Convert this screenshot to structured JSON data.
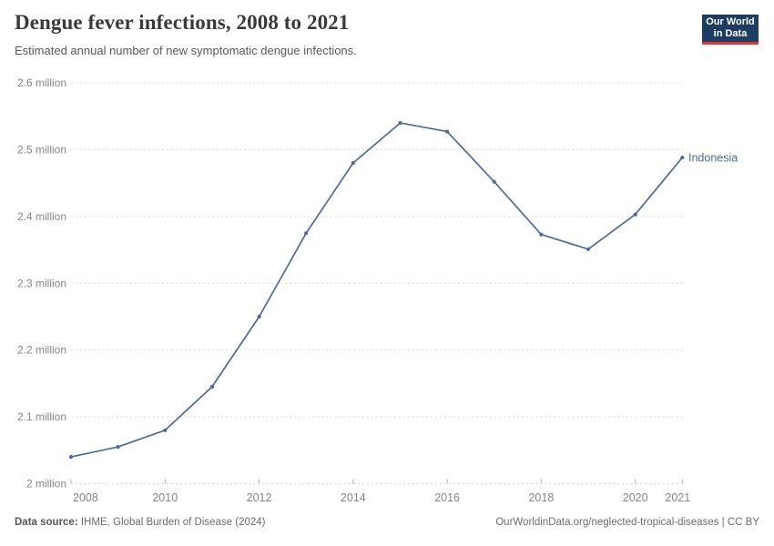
{
  "header": {
    "title": "Dengue fever infections, 2008 to 2021",
    "subtitle": "Estimated annual number of new symptomatic dengue infections.",
    "logo": {
      "line1": "Our World",
      "line2": "in Data"
    }
  },
  "chart_data": {
    "type": "line",
    "title": "Dengue fever infections, 2008 to 2021",
    "unit": "million",
    "x": [
      2008,
      2009,
      2010,
      2011,
      2012,
      2013,
      2014,
      2015,
      2016,
      2017,
      2018,
      2019,
      2020,
      2021
    ],
    "series": [
      {
        "name": "Indonesia",
        "values_millions": [
          2.04,
          2.055,
          2.08,
          2.145,
          2.25,
          2.375,
          2.48,
          2.54,
          2.527,
          2.452,
          2.373,
          2.351,
          2.403,
          2.488
        ]
      }
    ],
    "xlim": [
      2008,
      2021
    ],
    "ylim": [
      2.0,
      2.6
    ],
    "grid": true,
    "legend_position": "end-of-line",
    "yticks": [
      {
        "value": 2.0,
        "label": "2 million"
      },
      {
        "value": 2.1,
        "label": "2.1 million"
      },
      {
        "value": 2.2,
        "label": "2.2 million"
      },
      {
        "value": 2.3,
        "label": "2.3 million"
      },
      {
        "value": 2.4,
        "label": "2.4 million"
      },
      {
        "value": 2.5,
        "label": "2.5 million"
      },
      {
        "value": 2.6,
        "label": "2.6 million"
      }
    ],
    "xticks": [
      {
        "value": 2008,
        "label": "2008"
      },
      {
        "value": 2010,
        "label": "2010"
      },
      {
        "value": 2012,
        "label": "2012"
      },
      {
        "value": 2014,
        "label": "2014"
      },
      {
        "value": 2016,
        "label": "2016"
      },
      {
        "value": 2018,
        "label": "2018"
      },
      {
        "value": 2020,
        "label": "2020"
      },
      {
        "value": 2021,
        "label": "2021"
      }
    ],
    "entity_label": "Indonesia"
  },
  "footer": {
    "datasource_label": "Data source:",
    "datasource_value": " IHME, Global Burden of Disease (2024)",
    "link": "OurWorldinData.org/neglected-tropical-diseases | CC BY"
  },
  "colors": {
    "line": "#4c6a9c",
    "grid": "#dcdcdc",
    "tick": "#b3b3b3",
    "axis_label": "#858585",
    "logo_bg": "#1d3d63",
    "logo_red": "#e0362c"
  }
}
